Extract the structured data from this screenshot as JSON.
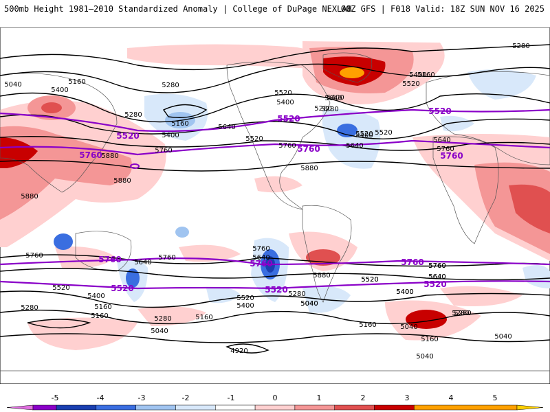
{
  "header": {
    "title": "500mb Height 1981–2010 Standardized Anomaly | College of DuPage NEXLAB",
    "run_info": "00Z GFS | F018 Valid: 18Z SUN NOV 16 2025"
  },
  "map": {
    "variable": "500mb Height",
    "model": "GFS",
    "black_contour_labels": [
      "5280",
      "5040",
      "5400",
      "5160",
      "5280",
      "5400",
      "5520",
      "5640",
      "5280",
      "5160",
      "5400",
      "5640",
      "5520",
      "5760",
      "5880",
      "5280",
      "5400",
      "5160",
      "5400",
      "5520",
      "5640",
      "5760",
      "5880",
      "5520",
      "5400",
      "5280",
      "5520",
      "5640",
      "5760",
      "5880",
      "5760",
      "5880",
      "5760",
      "5640",
      "5760",
      "5640",
      "5520",
      "5400",
      "5160",
      "5280",
      "5160",
      "5040",
      "5280",
      "5160",
      "5040",
      "4920",
      "5520",
      "5400",
      "5280",
      "5040",
      "5880",
      "5760",
      "5640",
      "5520",
      "5400",
      "5160",
      "5040",
      "5280",
      "5160",
      "5040",
      "5040",
      "5400",
      "5280",
      "5520",
      "5760",
      "5640"
    ],
    "purple_contour_labels": [
      "5520",
      "5520",
      "5760",
      "5760",
      "5520",
      "5760",
      "5760",
      "5760",
      "5520",
      "5520",
      "5760",
      "5520"
    ],
    "colors": {
      "neg_contour": "#8a00c8",
      "contour": "#000000",
      "land_outline": "#555555"
    }
  },
  "colorbar": {
    "ticks": [
      "-5",
      "-4",
      "-3",
      "-2",
      "-1",
      "0",
      "1",
      "2",
      "3",
      "4",
      "5"
    ],
    "colors": [
      "#e070e0",
      "#8a00c8",
      "#1a3fb0",
      "#3a6ee0",
      "#a0c4f0",
      "#d8e8fa",
      "#ffffff",
      "#ffd0d0",
      "#f49696",
      "#e05050",
      "#c80000",
      "#ffa000",
      "#ffd000"
    ]
  }
}
